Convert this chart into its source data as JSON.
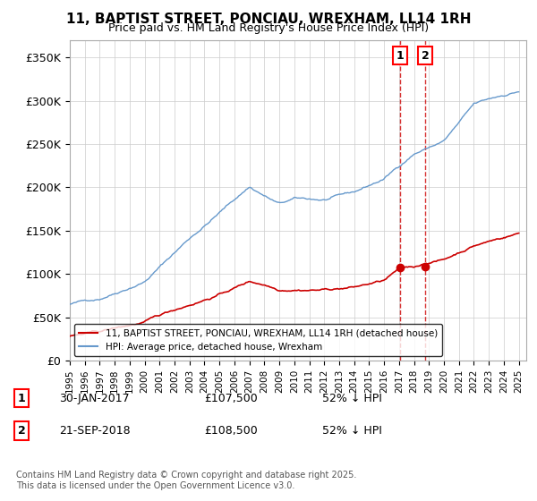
{
  "title": "11, BAPTIST STREET, PONCIAU, WREXHAM, LL14 1RH",
  "subtitle": "Price paid vs. HM Land Registry's House Price Index (HPI)",
  "ylabel_ticks": [
    "£0",
    "£50K",
    "£100K",
    "£150K",
    "£200K",
    "£250K",
    "£300K",
    "£350K"
  ],
  "ytick_values": [
    0,
    50000,
    100000,
    150000,
    200000,
    250000,
    300000,
    350000
  ],
  "ylim": [
    0,
    370000
  ],
  "legend_line1": "11, BAPTIST STREET, PONCIAU, WREXHAM, LL14 1RH (detached house)",
  "legend_line2": "HPI: Average price, detached house, Wrexham",
  "line_color_red": "#cc0000",
  "line_color_blue": "#6699cc",
  "vline_color": "#cc0000",
  "annotation1_label": "1",
  "annotation1_date": "30-JAN-2017",
  "annotation1_price": "£107,500",
  "annotation1_pct": "52% ↓ HPI",
  "annotation2_label": "2",
  "annotation2_date": "21-SEP-2018",
  "annotation2_price": "£108,500",
  "annotation2_pct": "52% ↓ HPI",
  "footer": "Contains HM Land Registry data © Crown copyright and database right 2025.\nThis data is licensed under the Open Government Licence v3.0.",
  "background_color": "#ffffff",
  "grid_color": "#cccccc"
}
